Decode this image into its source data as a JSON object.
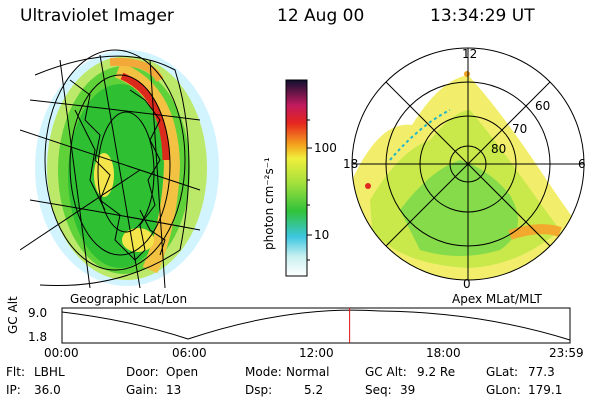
{
  "header": {
    "instrument": "Ultraviolet Imager",
    "date": "12 Aug 00",
    "time": "13:34:29 UT"
  },
  "colorbar": {
    "unit_label": "photon cm⁻²s⁻¹",
    "ticks": [
      "100",
      "10"
    ]
  },
  "left_panel": {
    "caption": "Geographic Lat/Lon"
  },
  "right_panel": {
    "caption": "Apex MLat/MLT",
    "mlt_labels": {
      "top": "12",
      "left": "18",
      "right": "6",
      "bottom": "0"
    },
    "lat_labels": [
      "60",
      "70",
      "80"
    ]
  },
  "altitude_plot": {
    "ylabel": "GC Alt",
    "yticks": [
      "9.0",
      "1.8"
    ],
    "xticks": [
      "00:00",
      "06:00",
      "12:00",
      "18:00",
      "23:59"
    ],
    "current_time_fraction": 0.5662
  },
  "info": {
    "filter_label": "Flt:",
    "filter_value": "LBHL",
    "door_label": "Door:",
    "door_value": "Open",
    "mode_label": "Mode:",
    "mode_value": "Normal",
    "gcalt_label": "GC Alt:",
    "gcalt_value": "9.2 Re",
    "glat_label": "GLat:",
    "glat_value": "77.3",
    "ip_label": "IP:",
    "ip_value": "36.0",
    "gain_label": "Gain:",
    "gain_value": "13",
    "dsp_label": "Dsp:",
    "dsp_value": "5.2",
    "seq_label": "Seq:",
    "seq_value": "39",
    "glon_label": "GLon:",
    "glon_value": "179.1"
  }
}
